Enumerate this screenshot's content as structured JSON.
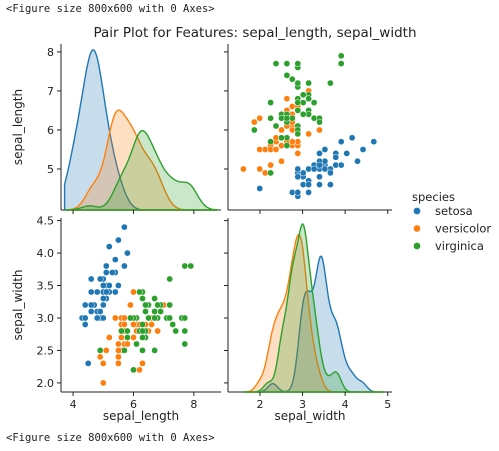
{
  "console": {
    "top_line": "<Figure size 800x600 with 0 Axes>",
    "bottom_line": "<Figure size 800x600 with 0 Axes>"
  },
  "colors": {
    "setosa": "#1f77b4",
    "versicolor": "#ff7f0e",
    "virginica": "#2ca02c"
  },
  "chart_data": {
    "type": "scatter",
    "kind": "pairplot",
    "title": "Pair Plot for Features: sepal_length, sepal_width",
    "variables": [
      "sepal_length",
      "sepal_width"
    ],
    "axes": {
      "sepal_length": {
        "label": "sepal_length",
        "diag_ticks": [
          5,
          6,
          7,
          8
        ],
        "offdiag_ticks": [
          4,
          6,
          8
        ],
        "offdiag_range": [
          3.6,
          8.9
        ],
        "diag_range": [
          4.1,
          8.6
        ]
      },
      "sepal_width": {
        "label": "sepal_width",
        "ticks": [
          2.0,
          2.5,
          3.0,
          3.5,
          4.0,
          4.5
        ],
        "tick_labels": [
          "2.0",
          "2.5",
          "3.0",
          "3.5",
          "4.0",
          "4.5"
        ],
        "range": [
          1.86,
          4.54
        ],
        "x_ticks": [
          2,
          3,
          4,
          5
        ],
        "x_range": [
          1.25,
          5.1
        ]
      }
    },
    "legend": {
      "title": "species",
      "placement": "right",
      "entries": [
        "setosa",
        "versicolor",
        "virginica"
      ]
    },
    "kde": {
      "sepal_length": [
        {
          "name": "setosa",
          "peak_x": 5.0,
          "peak_density": 1.25
        },
        {
          "name": "versicolor",
          "peak_x": 5.9,
          "peak_density": 0.78
        },
        {
          "name": "virginica",
          "peak_x": 6.45,
          "peak_density": 0.62
        }
      ],
      "sepal_width": [
        {
          "name": "setosa",
          "peak_x": 3.4,
          "peak_density": 1.05
        },
        {
          "name": "versicolor",
          "peak_x": 2.8,
          "peak_density": 1.22
        },
        {
          "name": "virginica",
          "peak_x": 3.0,
          "peak_density": 1.3
        }
      ]
    },
    "series": [
      {
        "name": "setosa",
        "points": [
          [
            5.1,
            3.5
          ],
          [
            4.9,
            3.0
          ],
          [
            4.7,
            3.2
          ],
          [
            4.6,
            3.1
          ],
          [
            5.0,
            3.6
          ],
          [
            5.4,
            3.9
          ],
          [
            4.6,
            3.4
          ],
          [
            5.0,
            3.4
          ],
          [
            4.4,
            2.9
          ],
          [
            4.9,
            3.1
          ],
          [
            5.4,
            3.7
          ],
          [
            4.8,
            3.4
          ],
          [
            4.8,
            3.0
          ],
          [
            4.3,
            3.0
          ],
          [
            5.8,
            4.0
          ],
          [
            5.7,
            4.4
          ],
          [
            5.4,
            3.9
          ],
          [
            5.1,
            3.5
          ],
          [
            5.7,
            3.8
          ],
          [
            5.1,
            3.8
          ],
          [
            5.4,
            3.4
          ],
          [
            5.1,
            3.7
          ],
          [
            4.6,
            3.6
          ],
          [
            5.1,
            3.3
          ],
          [
            4.8,
            3.4
          ],
          [
            5.0,
            3.0
          ],
          [
            5.0,
            3.4
          ],
          [
            5.2,
            3.5
          ],
          [
            5.2,
            3.4
          ],
          [
            4.7,
            3.2
          ],
          [
            4.8,
            3.1
          ],
          [
            5.4,
            3.4
          ],
          [
            5.2,
            4.1
          ],
          [
            5.5,
            4.2
          ],
          [
            4.9,
            3.1
          ],
          [
            5.0,
            3.2
          ],
          [
            5.5,
            3.5
          ],
          [
            4.9,
            3.6
          ],
          [
            4.4,
            3.0
          ],
          [
            5.1,
            3.4
          ],
          [
            5.0,
            3.5
          ],
          [
            4.5,
            2.3
          ],
          [
            4.4,
            3.2
          ],
          [
            5.0,
            3.5
          ],
          [
            5.1,
            3.8
          ],
          [
            4.8,
            3.0
          ],
          [
            5.1,
            3.8
          ],
          [
            4.6,
            3.2
          ],
          [
            5.3,
            3.7
          ],
          [
            5.0,
            3.3
          ]
        ]
      },
      {
        "name": "versicolor",
        "points": [
          [
            7.0,
            3.2
          ],
          [
            6.4,
            3.2
          ],
          [
            6.9,
            3.1
          ],
          [
            5.5,
            2.3
          ],
          [
            6.5,
            2.8
          ],
          [
            5.7,
            2.8
          ],
          [
            6.3,
            3.3
          ],
          [
            4.9,
            2.4
          ],
          [
            6.6,
            2.9
          ],
          [
            5.2,
            2.7
          ],
          [
            5.0,
            2.0
          ],
          [
            5.9,
            3.0
          ],
          [
            6.0,
            2.2
          ],
          [
            6.1,
            2.9
          ],
          [
            5.6,
            2.9
          ],
          [
            6.7,
            3.1
          ],
          [
            5.6,
            3.0
          ],
          [
            5.8,
            2.7
          ],
          [
            6.2,
            2.2
          ],
          [
            5.6,
            2.5
          ],
          [
            5.9,
            3.2
          ],
          [
            6.1,
            2.8
          ],
          [
            6.3,
            2.5
          ],
          [
            6.1,
            2.8
          ],
          [
            6.4,
            2.9
          ],
          [
            6.6,
            3.0
          ],
          [
            6.8,
            2.8
          ],
          [
            6.7,
            3.0
          ],
          [
            6.0,
            2.9
          ],
          [
            5.7,
            2.6
          ],
          [
            5.5,
            2.4
          ],
          [
            5.5,
            2.4
          ],
          [
            5.8,
            2.7
          ],
          [
            6.0,
            2.7
          ],
          [
            5.4,
            3.0
          ],
          [
            6.0,
            3.4
          ],
          [
            6.7,
            3.1
          ],
          [
            6.3,
            2.3
          ],
          [
            5.6,
            3.0
          ],
          [
            5.5,
            2.5
          ],
          [
            5.5,
            2.6
          ],
          [
            6.1,
            3.0
          ],
          [
            5.8,
            2.6
          ],
          [
            5.0,
            2.3
          ],
          [
            5.6,
            2.7
          ],
          [
            5.7,
            3.0
          ],
          [
            5.7,
            2.9
          ],
          [
            6.2,
            2.9
          ],
          [
            5.1,
            2.5
          ],
          [
            5.7,
            2.8
          ]
        ]
      },
      {
        "name": "virginica",
        "points": [
          [
            6.3,
            3.3
          ],
          [
            5.8,
            2.7
          ],
          [
            7.1,
            3.0
          ],
          [
            6.3,
            2.9
          ],
          [
            6.5,
            3.0
          ],
          [
            7.6,
            3.0
          ],
          [
            4.9,
            2.5
          ],
          [
            7.3,
            2.9
          ],
          [
            6.7,
            2.5
          ],
          [
            7.2,
            3.6
          ],
          [
            6.5,
            3.2
          ],
          [
            6.4,
            2.7
          ],
          [
            6.8,
            3.0
          ],
          [
            5.7,
            2.5
          ],
          [
            5.8,
            2.8
          ],
          [
            6.4,
            3.2
          ],
          [
            6.5,
            3.0
          ],
          [
            7.7,
            3.8
          ],
          [
            7.7,
            2.6
          ],
          [
            6.0,
            2.2
          ],
          [
            6.9,
            3.2
          ],
          [
            5.6,
            2.8
          ],
          [
            7.7,
            2.8
          ],
          [
            6.3,
            2.7
          ],
          [
            6.7,
            3.3
          ],
          [
            7.2,
            3.2
          ],
          [
            6.2,
            2.8
          ],
          [
            6.1,
            3.0
          ],
          [
            6.4,
            2.8
          ],
          [
            7.2,
            3.0
          ],
          [
            7.4,
            2.8
          ],
          [
            7.9,
            3.8
          ],
          [
            6.4,
            2.8
          ],
          [
            6.3,
            2.8
          ],
          [
            6.1,
            2.6
          ],
          [
            7.7,
            3.0
          ],
          [
            6.3,
            3.4
          ],
          [
            6.4,
            3.1
          ],
          [
            6.0,
            3.0
          ],
          [
            6.9,
            3.1
          ],
          [
            6.7,
            3.1
          ],
          [
            6.9,
            3.1
          ],
          [
            5.8,
            2.7
          ],
          [
            6.8,
            3.2
          ],
          [
            6.7,
            3.3
          ],
          [
            6.7,
            3.0
          ],
          [
            6.3,
            2.5
          ],
          [
            6.5,
            3.0
          ],
          [
            6.2,
            3.4
          ],
          [
            5.9,
            3.0
          ]
        ]
      }
    ]
  }
}
